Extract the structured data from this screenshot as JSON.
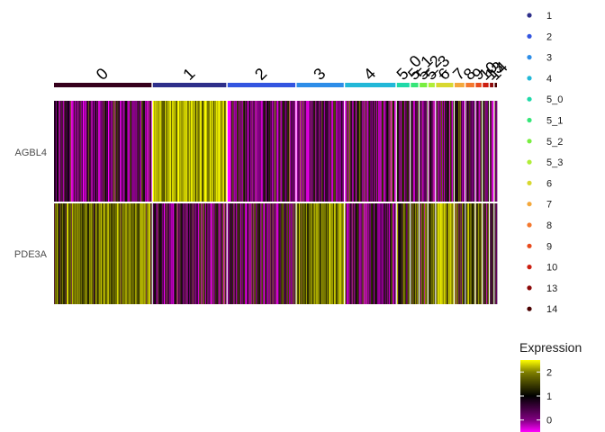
{
  "chart_data": {
    "type": "heatmap",
    "title": "",
    "genes": [
      "AGBL4",
      "PDE3A"
    ],
    "clusters": [
      {
        "label": "0",
        "color": "#36001c",
        "cells": 170,
        "agbl4": 0.15,
        "pde3a": 1.35
      },
      {
        "label": "1",
        "color": "#2e2f8a",
        "cells": 128,
        "agbl4": 1.95,
        "pde3a": 0.35
      },
      {
        "label": "2",
        "color": "#3355e0",
        "cells": 118,
        "agbl4": 0.25,
        "pde3a": 0.45
      },
      {
        "label": "3",
        "color": "#2d8de8",
        "cells": 82,
        "agbl4": 0.2,
        "pde3a": 1.45
      },
      {
        "label": "4",
        "color": "#22b8d8",
        "cells": 88,
        "agbl4": 0.3,
        "pde3a": 0.3
      },
      {
        "label": "5_0",
        "color": "#1fd9a8",
        "cells": 22,
        "agbl4": 0.2,
        "pde3a": 0.9
      },
      {
        "label": "5_1",
        "color": "#35e678",
        "cells": 13,
        "agbl4": 0.2,
        "pde3a": 1.0
      },
      {
        "label": "5_2",
        "color": "#78ee40",
        "cells": 13,
        "agbl4": 0.25,
        "pde3a": 0.9
      },
      {
        "label": "5_3",
        "color": "#b0ee38",
        "cells": 11,
        "agbl4": 0.2,
        "pde3a": 1.1
      },
      {
        "label": "6",
        "color": "#d8d830",
        "cells": 30,
        "agbl4": 0.15,
        "pde3a": 1.6
      },
      {
        "label": "7",
        "color": "#f4a83c",
        "cells": 17,
        "agbl4": 0.4,
        "pde3a": 1.2
      },
      {
        "label": "8",
        "color": "#f4782e",
        "cells": 15,
        "agbl4": 0.3,
        "pde3a": 1.3
      },
      {
        "label": "9",
        "color": "#e84a1c",
        "cells": 10,
        "agbl4": 0.3,
        "pde3a": 1.1
      },
      {
        "label": "10",
        "color": "#cc1e10",
        "cells": 10,
        "agbl4": 0.5,
        "pde3a": 0.6
      },
      {
        "label": "13",
        "color": "#8c0808",
        "cells": 6,
        "agbl4": 0.3,
        "pde3a": 1.0
      },
      {
        "label": "14",
        "color": "#4a0000",
        "cells": 4,
        "agbl4": 0.6,
        "pde3a": 1.0
      }
    ],
    "legend_items": [
      {
        "label": "1",
        "color": "#2e2f8a"
      },
      {
        "label": "2",
        "color": "#3355e0"
      },
      {
        "label": "3",
        "color": "#2d8de8"
      },
      {
        "label": "4",
        "color": "#22b8d8"
      },
      {
        "label": "5_0",
        "color": "#1fd9a8"
      },
      {
        "label": "5_1",
        "color": "#35e678"
      },
      {
        "label": "5_2",
        "color": "#78ee40"
      },
      {
        "label": "5_3",
        "color": "#b0ee38"
      },
      {
        "label": "6",
        "color": "#d8d830"
      },
      {
        "label": "7",
        "color": "#f4a83c"
      },
      {
        "label": "8",
        "color": "#f4782e"
      },
      {
        "label": "9",
        "color": "#e84a1c"
      },
      {
        "label": "10",
        "color": "#cc1e10"
      },
      {
        "label": "13",
        "color": "#8c0808"
      },
      {
        "label": "14",
        "color": "#4a0000"
      }
    ],
    "colorbar": {
      "title": "Expression",
      "ticks": [
        0,
        1,
        2
      ],
      "range": [
        -0.5,
        2.5
      ],
      "colors": {
        "low": "#ff00ff",
        "mid": "#000000",
        "high": "#ffff00"
      }
    }
  }
}
